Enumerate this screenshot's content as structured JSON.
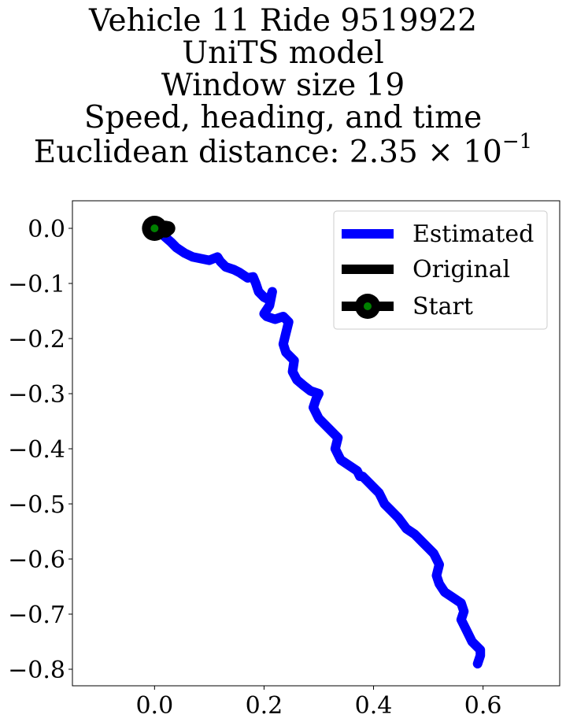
{
  "title": {
    "line1": "Vehicle 11 Ride 9519922",
    "line2": "UniTS model",
    "line3": "Window size 19",
    "line4": "Speed, heading, and time",
    "line5_prefix": "Euclidean distance: 2.35 × 10",
    "line5_exp": "−1"
  },
  "chart_data": {
    "type": "line",
    "xlim": [
      -0.15,
      0.74
    ],
    "ylim": [
      -0.83,
      0.05
    ],
    "xticks": [
      0.0,
      0.2,
      0.4,
      0.6
    ],
    "xtick_labels": [
      "0.0",
      "0.2",
      "0.4",
      "0.6"
    ],
    "yticks": [
      0.0,
      -0.1,
      -0.2,
      -0.3,
      -0.4,
      -0.5,
      -0.6,
      -0.7,
      -0.8
    ],
    "ytick_labels": [
      "0.0",
      "−0.1",
      "−0.2",
      "−0.3",
      "−0.4",
      "−0.5",
      "−0.6",
      "−0.7",
      "−0.8"
    ],
    "grid": false,
    "legend_position": "top-right",
    "series": [
      {
        "name": "Estimated",
        "color": "#0000ff",
        "x": [
          0.0,
          0.015,
          0.03,
          0.04,
          0.055,
          0.07,
          0.085,
          0.1,
          0.115,
          0.12,
          0.13,
          0.145,
          0.155,
          0.17,
          0.18,
          0.185,
          0.19,
          0.2,
          0.21,
          0.215,
          0.21,
          0.2,
          0.205,
          0.22,
          0.235,
          0.245,
          0.24,
          0.235,
          0.24,
          0.25,
          0.255,
          0.252,
          0.26,
          0.272,
          0.285,
          0.3,
          0.295,
          0.29,
          0.3,
          0.315,
          0.33,
          0.335,
          0.33,
          0.34,
          0.355,
          0.37,
          0.375,
          0.38,
          0.39,
          0.4,
          0.41,
          0.415,
          0.42,
          0.43,
          0.445,
          0.46,
          0.475,
          0.48,
          0.49,
          0.5,
          0.51,
          0.52,
          0.515,
          0.52,
          0.53,
          0.545,
          0.56,
          0.565,
          0.56,
          0.57,
          0.58,
          0.595,
          0.595,
          0.59
        ],
        "y": [
          0.0,
          -0.012,
          -0.025,
          -0.035,
          -0.045,
          -0.052,
          -0.055,
          -0.058,
          -0.052,
          -0.06,
          -0.07,
          -0.075,
          -0.08,
          -0.09,
          -0.088,
          -0.1,
          -0.115,
          -0.125,
          -0.13,
          -0.115,
          -0.14,
          -0.155,
          -0.16,
          -0.165,
          -0.16,
          -0.17,
          -0.19,
          -0.21,
          -0.225,
          -0.235,
          -0.24,
          -0.26,
          -0.275,
          -0.285,
          -0.295,
          -0.3,
          -0.31,
          -0.325,
          -0.345,
          -0.36,
          -0.375,
          -0.38,
          -0.4,
          -0.42,
          -0.43,
          -0.44,
          -0.45,
          -0.45,
          -0.46,
          -0.47,
          -0.48,
          -0.49,
          -0.5,
          -0.51,
          -0.525,
          -0.545,
          -0.555,
          -0.56,
          -0.57,
          -0.58,
          -0.59,
          -0.61,
          -0.63,
          -0.645,
          -0.66,
          -0.67,
          -0.68,
          -0.695,
          -0.71,
          -0.73,
          -0.75,
          -0.765,
          -0.775,
          -0.79
        ]
      },
      {
        "name": "Original",
        "color": "#000000",
        "x": [
          0.0,
          0.005,
          0.01,
          0.015,
          0.02,
          0.025,
          0.02,
          0.01,
          0.0
        ],
        "y": [
          0.0,
          0.002,
          0.0,
          -0.002,
          0.001,
          0.0,
          -0.004,
          -0.003,
          0.0
        ]
      }
    ],
    "start": {
      "name": "Start",
      "x": 0.0,
      "y": 0.0,
      "marker_face": "#008000",
      "marker_edge": "#000000"
    }
  }
}
